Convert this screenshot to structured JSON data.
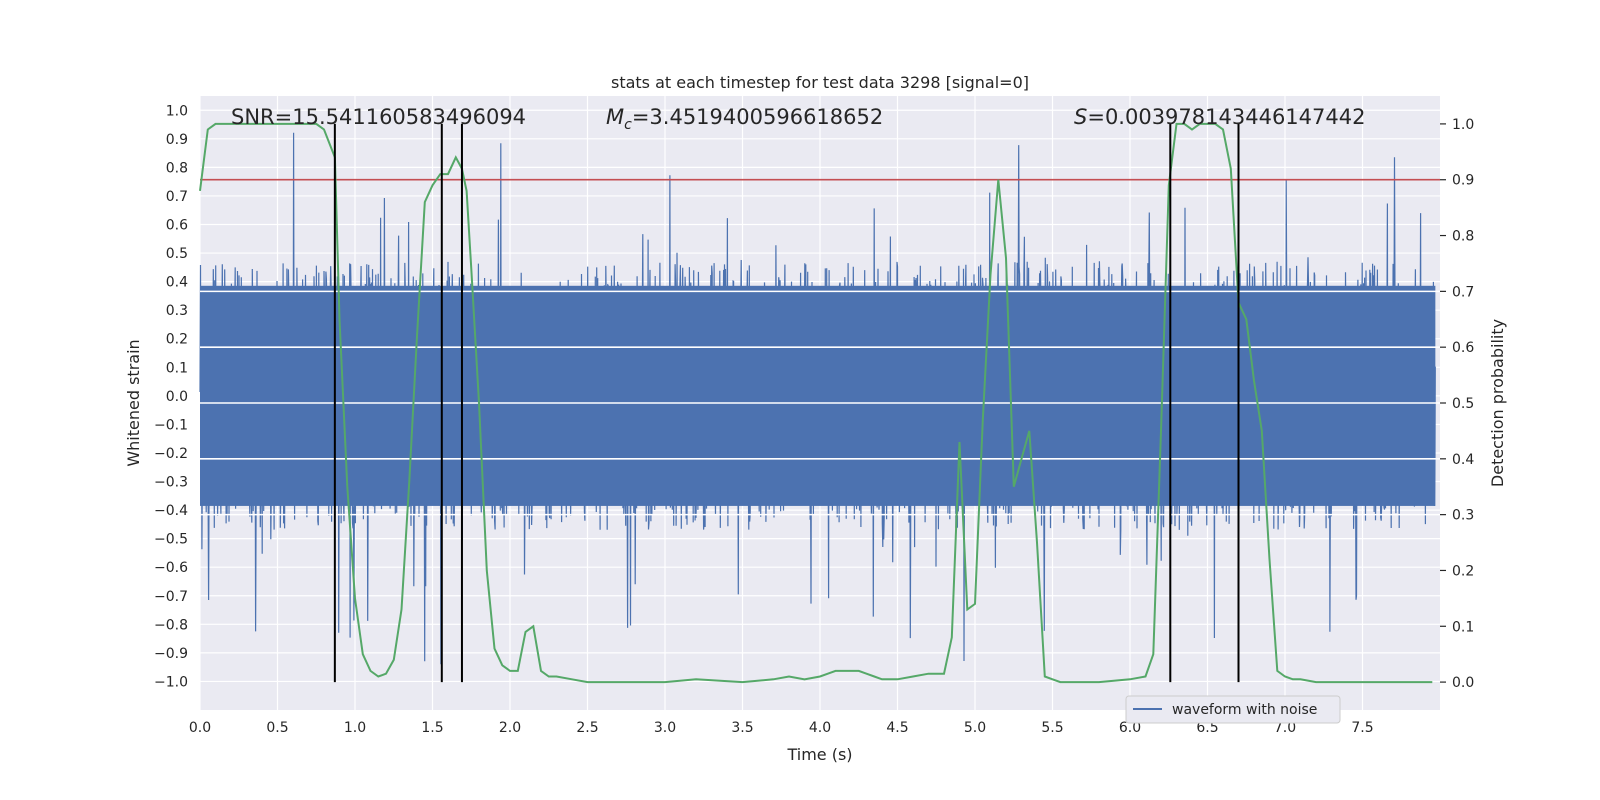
{
  "chart_data": {
    "type": "line",
    "title": "stats at each timestep for test data 3298 [signal=0]",
    "xlabel": "Time (s)",
    "ylabel": "Whitened strain",
    "ylabel_right": "Detection probability",
    "xlim": [
      0.0,
      8.0
    ],
    "ylim": [
      -1.1,
      1.05
    ],
    "ylim_right": [
      -0.05,
      1.05
    ],
    "xticks": [
      "0.0",
      "0.5",
      "1.0",
      "1.5",
      "2.0",
      "2.5",
      "3.0",
      "3.5",
      "4.0",
      "4.5",
      "5.0",
      "5.5",
      "6.0",
      "6.5",
      "7.0",
      "7.5"
    ],
    "yticks": [
      "−1.0",
      "−0.9",
      "−0.8",
      "−0.7",
      "−0.6",
      "−0.5",
      "−0.4",
      "−0.3",
      "−0.2",
      "−0.1",
      "0.0",
      "0.1",
      "0.2",
      "0.3",
      "0.4",
      "0.5",
      "0.6",
      "0.7",
      "0.8",
      "0.9",
      "1.0"
    ],
    "yticks_right": [
      "0.0",
      "0.1",
      "0.2",
      "0.3",
      "0.4",
      "0.5",
      "0.6",
      "0.7",
      "0.8",
      "0.9",
      "1.0"
    ],
    "annotations": {
      "snr": "SNR=15.541160583496094",
      "mc_symbol": "M",
      "mc_sub": "c",
      "mc_value": "=3.4519400596618652",
      "s_symbol": "S",
      "s_value": "=0.003978143446147442"
    },
    "threshold_right": 0.9,
    "white_lines_right": [
      0.3,
      0.4,
      0.5,
      0.6,
      0.7
    ],
    "vlines_x": [
      0.87,
      1.56,
      1.69,
      6.26,
      6.7
    ],
    "legend": [
      "waveform with noise"
    ],
    "legend_position": "lower-right",
    "waveform": {
      "name": "waveform with noise",
      "color": "#4c72b0",
      "t_end": 7.97,
      "envelope": 0.47,
      "spike_top": 0.95,
      "spike_bottom": -0.95
    },
    "probability": {
      "color": "#55a868",
      "x": [
        0.0,
        0.05,
        0.1,
        0.15,
        0.2,
        0.3,
        0.4,
        0.5,
        0.6,
        0.7,
        0.75,
        0.8,
        0.87,
        0.9,
        0.95,
        1.0,
        1.05,
        1.1,
        1.15,
        1.2,
        1.25,
        1.3,
        1.35,
        1.4,
        1.45,
        1.5,
        1.55,
        1.6,
        1.65,
        1.69,
        1.72,
        1.75,
        1.8,
        1.85,
        1.9,
        1.95,
        2.0,
        2.05,
        2.1,
        2.15,
        2.2,
        2.25,
        2.3,
        2.4,
        2.5,
        2.7,
        3.0,
        3.2,
        3.5,
        3.7,
        3.8,
        3.9,
        4.0,
        4.05,
        4.1,
        4.2,
        4.25,
        4.3,
        4.35,
        4.4,
        4.5,
        4.6,
        4.7,
        4.75,
        4.8,
        4.85,
        4.9,
        4.95,
        5.0,
        5.05,
        5.1,
        5.15,
        5.2,
        5.25,
        5.3,
        5.35,
        5.4,
        5.45,
        5.5,
        5.55,
        5.6,
        5.7,
        5.8,
        6.0,
        6.1,
        6.15,
        6.2,
        6.25,
        6.3,
        6.35,
        6.4,
        6.45,
        6.5,
        6.55,
        6.6,
        6.65,
        6.7,
        6.75,
        6.8,
        6.85,
        6.9,
        6.95,
        7.0,
        7.05,
        7.1,
        7.2,
        7.4,
        7.6,
        7.8,
        7.95
      ],
      "values": [
        0.88,
        0.99,
        1.0,
        1.0,
        1.0,
        1.0,
        1.0,
        1.0,
        1.0,
        1.0,
        1.0,
        0.99,
        0.94,
        0.65,
        0.35,
        0.15,
        0.05,
        0.02,
        0.01,
        0.015,
        0.04,
        0.13,
        0.36,
        0.62,
        0.86,
        0.89,
        0.91,
        0.91,
        0.94,
        0.92,
        0.88,
        0.74,
        0.5,
        0.2,
        0.06,
        0.03,
        0.02,
        0.02,
        0.09,
        0.1,
        0.02,
        0.01,
        0.01,
        0.005,
        0.0,
        0.0,
        0.0,
        0.005,
        0.0,
        0.005,
        0.01,
        0.005,
        0.01,
        0.015,
        0.02,
        0.02,
        0.02,
        0.015,
        0.01,
        0.005,
        0.005,
        0.01,
        0.015,
        0.015,
        0.015,
        0.08,
        0.43,
        0.13,
        0.14,
        0.47,
        0.73,
        0.9,
        0.76,
        0.35,
        0.4,
        0.45,
        0.25,
        0.01,
        0.005,
        0.0,
        0.0,
        0.0,
        0.0,
        0.005,
        0.01,
        0.05,
        0.45,
        0.89,
        1.0,
        1.0,
        0.99,
        1.0,
        1.0,
        1.0,
        0.99,
        0.92,
        0.68,
        0.65,
        0.54,
        0.45,
        0.22,
        0.02,
        0.01,
        0.005,
        0.005,
        0.0,
        0.0,
        0.0,
        0.0,
        0.0
      ]
    }
  }
}
